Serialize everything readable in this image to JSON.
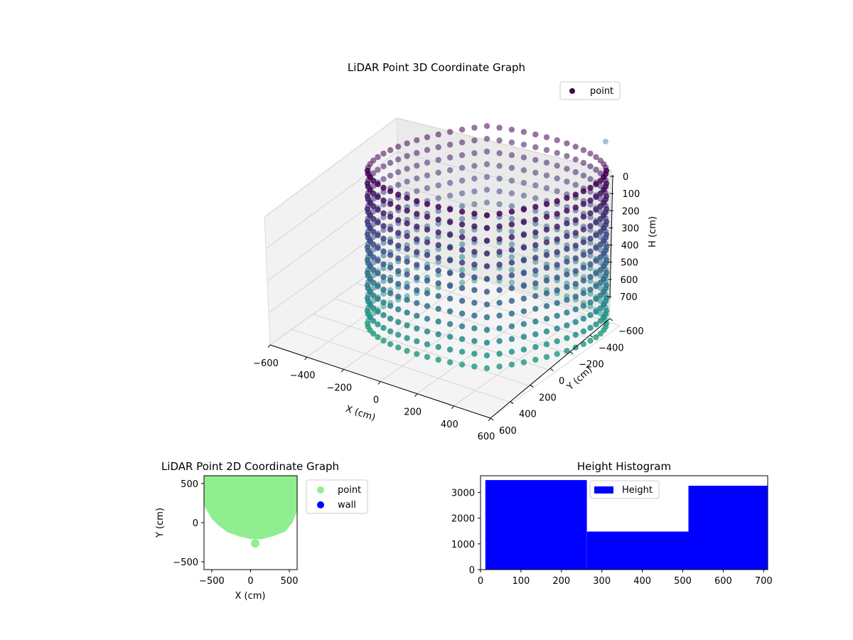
{
  "chart_data": [
    {
      "type": "scatter",
      "projection": "3d",
      "title": "LiDAR Point 3D Coordinate Graph",
      "xlabel": "X (cm)",
      "ylabel": "Y (cm)",
      "zlabel": "H (cm)",
      "xlim": [
        -600,
        600
      ],
      "ylim": [
        -600,
        600
      ],
      "zlim": [
        0,
        700
      ],
      "z_inverted": true,
      "xticks": [
        "−600",
        "−400",
        "−200",
        "0",
        "200",
        "400",
        "600"
      ],
      "yticks": [
        "−600",
        "−400",
        "−200",
        "0",
        "200",
        "400",
        "600"
      ],
      "zticks": [
        "0",
        "100",
        "200",
        "300",
        "400",
        "500",
        "600",
        "700"
      ],
      "grid": true,
      "legend": {
        "placement": "top-right",
        "entries": [
          "point"
        ]
      },
      "series": [
        {
          "name": "point",
          "shape": "cylindrical wall of points",
          "radius": 600,
          "height_range": [
            0,
            700
          ],
          "colormap": "viridis",
          "color_by": "H"
        }
      ]
    },
    {
      "type": "scatter",
      "title": "LiDAR Point 2D Coordinate Graph",
      "xlabel": "X (cm)",
      "ylabel": "Y (cm)",
      "xlim": [
        -600,
        600
      ],
      "ylim": [
        -600,
        600
      ],
      "xticks": [
        "−500",
        "0",
        "500"
      ],
      "yticks": [
        "−500",
        "0",
        "500"
      ],
      "legend": {
        "placement": "outside-right",
        "entries": [
          "point",
          "wall"
        ]
      },
      "series": [
        {
          "name": "point",
          "color": "#90ee90",
          "region_outline": [
            [
              -600,
              600
            ],
            [
              600,
              600
            ],
            [
              600,
              150
            ],
            [
              540,
              0
            ],
            [
              450,
              -110
            ],
            [
              300,
              -170
            ],
            [
              150,
              -210
            ],
            [
              0,
              -210
            ],
            [
              -150,
              -175
            ],
            [
              -300,
              -120
            ],
            [
              -420,
              -30
            ],
            [
              -500,
              50
            ],
            [
              -600,
              220
            ]
          ],
          "extra_blob": [
            60,
            -265
          ]
        },
        {
          "name": "wall",
          "color": "#0000ff"
        }
      ]
    },
    {
      "type": "bar",
      "subtype": "histogram",
      "title": "Height Histogram",
      "xlim": [
        0,
        710
      ],
      "ylim": [
        0,
        3650
      ],
      "xticks": [
        "0",
        "100",
        "200",
        "300",
        "400",
        "500",
        "600",
        "700"
      ],
      "yticks": [
        "0",
        "1000",
        "2000",
        "3000"
      ],
      "legend": {
        "placement": "upper-center",
        "entries": [
          "Height"
        ]
      },
      "series": [
        {
          "name": "Height",
          "color": "#0000ff",
          "bins": [
            {
              "start": 12,
              "end": 263,
              "value": 3480
            },
            {
              "start": 263,
              "end": 514,
              "value": 1480
            },
            {
              "start": 514,
              "end": 710,
              "value": 3260
            }
          ]
        }
      ]
    }
  ]
}
